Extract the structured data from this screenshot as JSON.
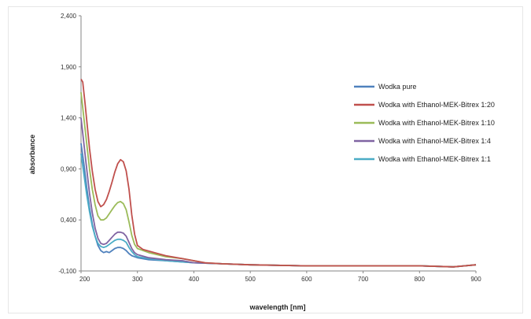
{
  "chart_data": {
    "type": "line",
    "title": "",
    "xlabel": "wavelength [nm]",
    "ylabel": "absorbance",
    "xlim": [
      200,
      900
    ],
    "ylim": [
      -0.1,
      2.4
    ],
    "x_ticks": [
      "200",
      "300",
      "400",
      "500",
      "600",
      "700",
      "800",
      "900"
    ],
    "y_ticks": [
      "-0,100",
      "0,400",
      "0,900",
      "1,400",
      "1,900",
      "2,400"
    ],
    "legend_position": "right",
    "grid": false,
    "series": [
      {
        "name": "Wodka pure",
        "color": "#4f81bd",
        "points": [
          [
            200,
            1.15
          ],
          [
            205,
            0.95
          ],
          [
            210,
            0.72
          ],
          [
            215,
            0.52
          ],
          [
            220,
            0.36
          ],
          [
            225,
            0.24
          ],
          [
            230,
            0.15
          ],
          [
            235,
            0.1
          ],
          [
            240,
            0.08
          ],
          [
            245,
            0.09
          ],
          [
            250,
            0.08
          ],
          [
            255,
            0.1
          ],
          [
            260,
            0.12
          ],
          [
            265,
            0.13
          ],
          [
            270,
            0.13
          ],
          [
            275,
            0.12
          ],
          [
            280,
            0.1
          ],
          [
            285,
            0.07
          ],
          [
            290,
            0.05
          ],
          [
            300,
            0.03
          ],
          [
            320,
            0.01
          ],
          [
            350,
            0.0
          ],
          [
            400,
            -0.02
          ],
          [
            450,
            -0.03
          ],
          [
            500,
            -0.04
          ],
          [
            600,
            -0.05
          ],
          [
            700,
            -0.05
          ],
          [
            800,
            -0.05
          ],
          [
            860,
            -0.06
          ],
          [
            880,
            -0.05
          ],
          [
            900,
            -0.04
          ]
        ]
      },
      {
        "name": "Wodka with Ethanol-MEK-Bitrex 1:20",
        "color": "#c0504d",
        "points": [
          [
            200,
            1.78
          ],
          [
            203,
            1.75
          ],
          [
            207,
            1.55
          ],
          [
            210,
            1.38
          ],
          [
            215,
            1.1
          ],
          [
            220,
            0.88
          ],
          [
            225,
            0.7
          ],
          [
            230,
            0.58
          ],
          [
            235,
            0.53
          ],
          [
            240,
            0.55
          ],
          [
            245,
            0.6
          ],
          [
            250,
            0.68
          ],
          [
            255,
            0.77
          ],
          [
            260,
            0.87
          ],
          [
            265,
            0.95
          ],
          [
            270,
            0.99
          ],
          [
            275,
            0.97
          ],
          [
            280,
            0.88
          ],
          [
            285,
            0.7
          ],
          [
            290,
            0.45
          ],
          [
            295,
            0.26
          ],
          [
            300,
            0.15
          ],
          [
            310,
            0.11
          ],
          [
            330,
            0.08
          ],
          [
            350,
            0.05
          ],
          [
            380,
            0.02
          ],
          [
            400,
            0.0
          ],
          [
            420,
            -0.02
          ],
          [
            450,
            -0.03
          ],
          [
            500,
            -0.04
          ],
          [
            600,
            -0.05
          ],
          [
            700,
            -0.05
          ],
          [
            800,
            -0.05
          ],
          [
            860,
            -0.06
          ],
          [
            880,
            -0.05
          ],
          [
            900,
            -0.04
          ]
        ]
      },
      {
        "name": "Wodka with Ethanol-MEK-Bitrex 1:10",
        "color": "#9bbb59",
        "points": [
          [
            200,
            1.65
          ],
          [
            205,
            1.4
          ],
          [
            210,
            1.15
          ],
          [
            215,
            0.9
          ],
          [
            220,
            0.7
          ],
          [
            225,
            0.55
          ],
          [
            230,
            0.44
          ],
          [
            235,
            0.4
          ],
          [
            240,
            0.4
          ],
          [
            245,
            0.42
          ],
          [
            250,
            0.46
          ],
          [
            255,
            0.5
          ],
          [
            260,
            0.54
          ],
          [
            265,
            0.57
          ],
          [
            270,
            0.58
          ],
          [
            275,
            0.56
          ],
          [
            280,
            0.5
          ],
          [
            285,
            0.38
          ],
          [
            290,
            0.25
          ],
          [
            295,
            0.16
          ],
          [
            300,
            0.12
          ],
          [
            320,
            0.08
          ],
          [
            350,
            0.04
          ],
          [
            380,
            0.02
          ],
          [
            400,
            0.0
          ],
          [
            420,
            -0.02
          ],
          [
            450,
            -0.03
          ],
          [
            500,
            -0.04
          ],
          [
            600,
            -0.05
          ],
          [
            700,
            -0.05
          ],
          [
            800,
            -0.05
          ],
          [
            860,
            -0.06
          ],
          [
            880,
            -0.05
          ],
          [
            900,
            -0.04
          ]
        ]
      },
      {
        "name": "Wodka with Ethanol-MEK-Bitrex 1:4",
        "color": "#8064a2",
        "points": [
          [
            200,
            1.4
          ],
          [
            205,
            1.15
          ],
          [
            210,
            0.9
          ],
          [
            215,
            0.66
          ],
          [
            220,
            0.47
          ],
          [
            225,
            0.32
          ],
          [
            230,
            0.22
          ],
          [
            235,
            0.17
          ],
          [
            240,
            0.16
          ],
          [
            245,
            0.17
          ],
          [
            250,
            0.2
          ],
          [
            255,
            0.23
          ],
          [
            260,
            0.26
          ],
          [
            265,
            0.28
          ],
          [
            270,
            0.28
          ],
          [
            275,
            0.27
          ],
          [
            280,
            0.24
          ],
          [
            285,
            0.18
          ],
          [
            290,
            0.12
          ],
          [
            295,
            0.08
          ],
          [
            300,
            0.06
          ],
          [
            320,
            0.03
          ],
          [
            350,
            0.01
          ],
          [
            380,
            0.0
          ],
          [
            400,
            -0.02
          ],
          [
            450,
            -0.03
          ],
          [
            500,
            -0.04
          ],
          [
            600,
            -0.05
          ],
          [
            700,
            -0.05
          ],
          [
            800,
            -0.05
          ],
          [
            860,
            -0.06
          ],
          [
            880,
            -0.05
          ],
          [
            900,
            -0.04
          ]
        ]
      },
      {
        "name": "Wodka with Ethanol-MEK-Bitrex 1:1",
        "color": "#4bacc6",
        "points": [
          [
            200,
            1.05
          ],
          [
            205,
            0.85
          ],
          [
            210,
            0.65
          ],
          [
            215,
            0.48
          ],
          [
            220,
            0.34
          ],
          [
            225,
            0.24
          ],
          [
            230,
            0.17
          ],
          [
            235,
            0.14
          ],
          [
            240,
            0.13
          ],
          [
            245,
            0.14
          ],
          [
            250,
            0.16
          ],
          [
            255,
            0.18
          ],
          [
            260,
            0.2
          ],
          [
            265,
            0.21
          ],
          [
            270,
            0.21
          ],
          [
            275,
            0.2
          ],
          [
            280,
            0.18
          ],
          [
            285,
            0.13
          ],
          [
            290,
            0.09
          ],
          [
            295,
            0.06
          ],
          [
            300,
            0.04
          ],
          [
            320,
            0.02
          ],
          [
            350,
            0.0
          ],
          [
            400,
            -0.02
          ],
          [
            450,
            -0.03
          ],
          [
            500,
            -0.04
          ],
          [
            600,
            -0.05
          ],
          [
            700,
            -0.05
          ],
          [
            800,
            -0.05
          ],
          [
            860,
            -0.06
          ],
          [
            880,
            -0.05
          ],
          [
            900,
            -0.04
          ]
        ]
      }
    ]
  }
}
